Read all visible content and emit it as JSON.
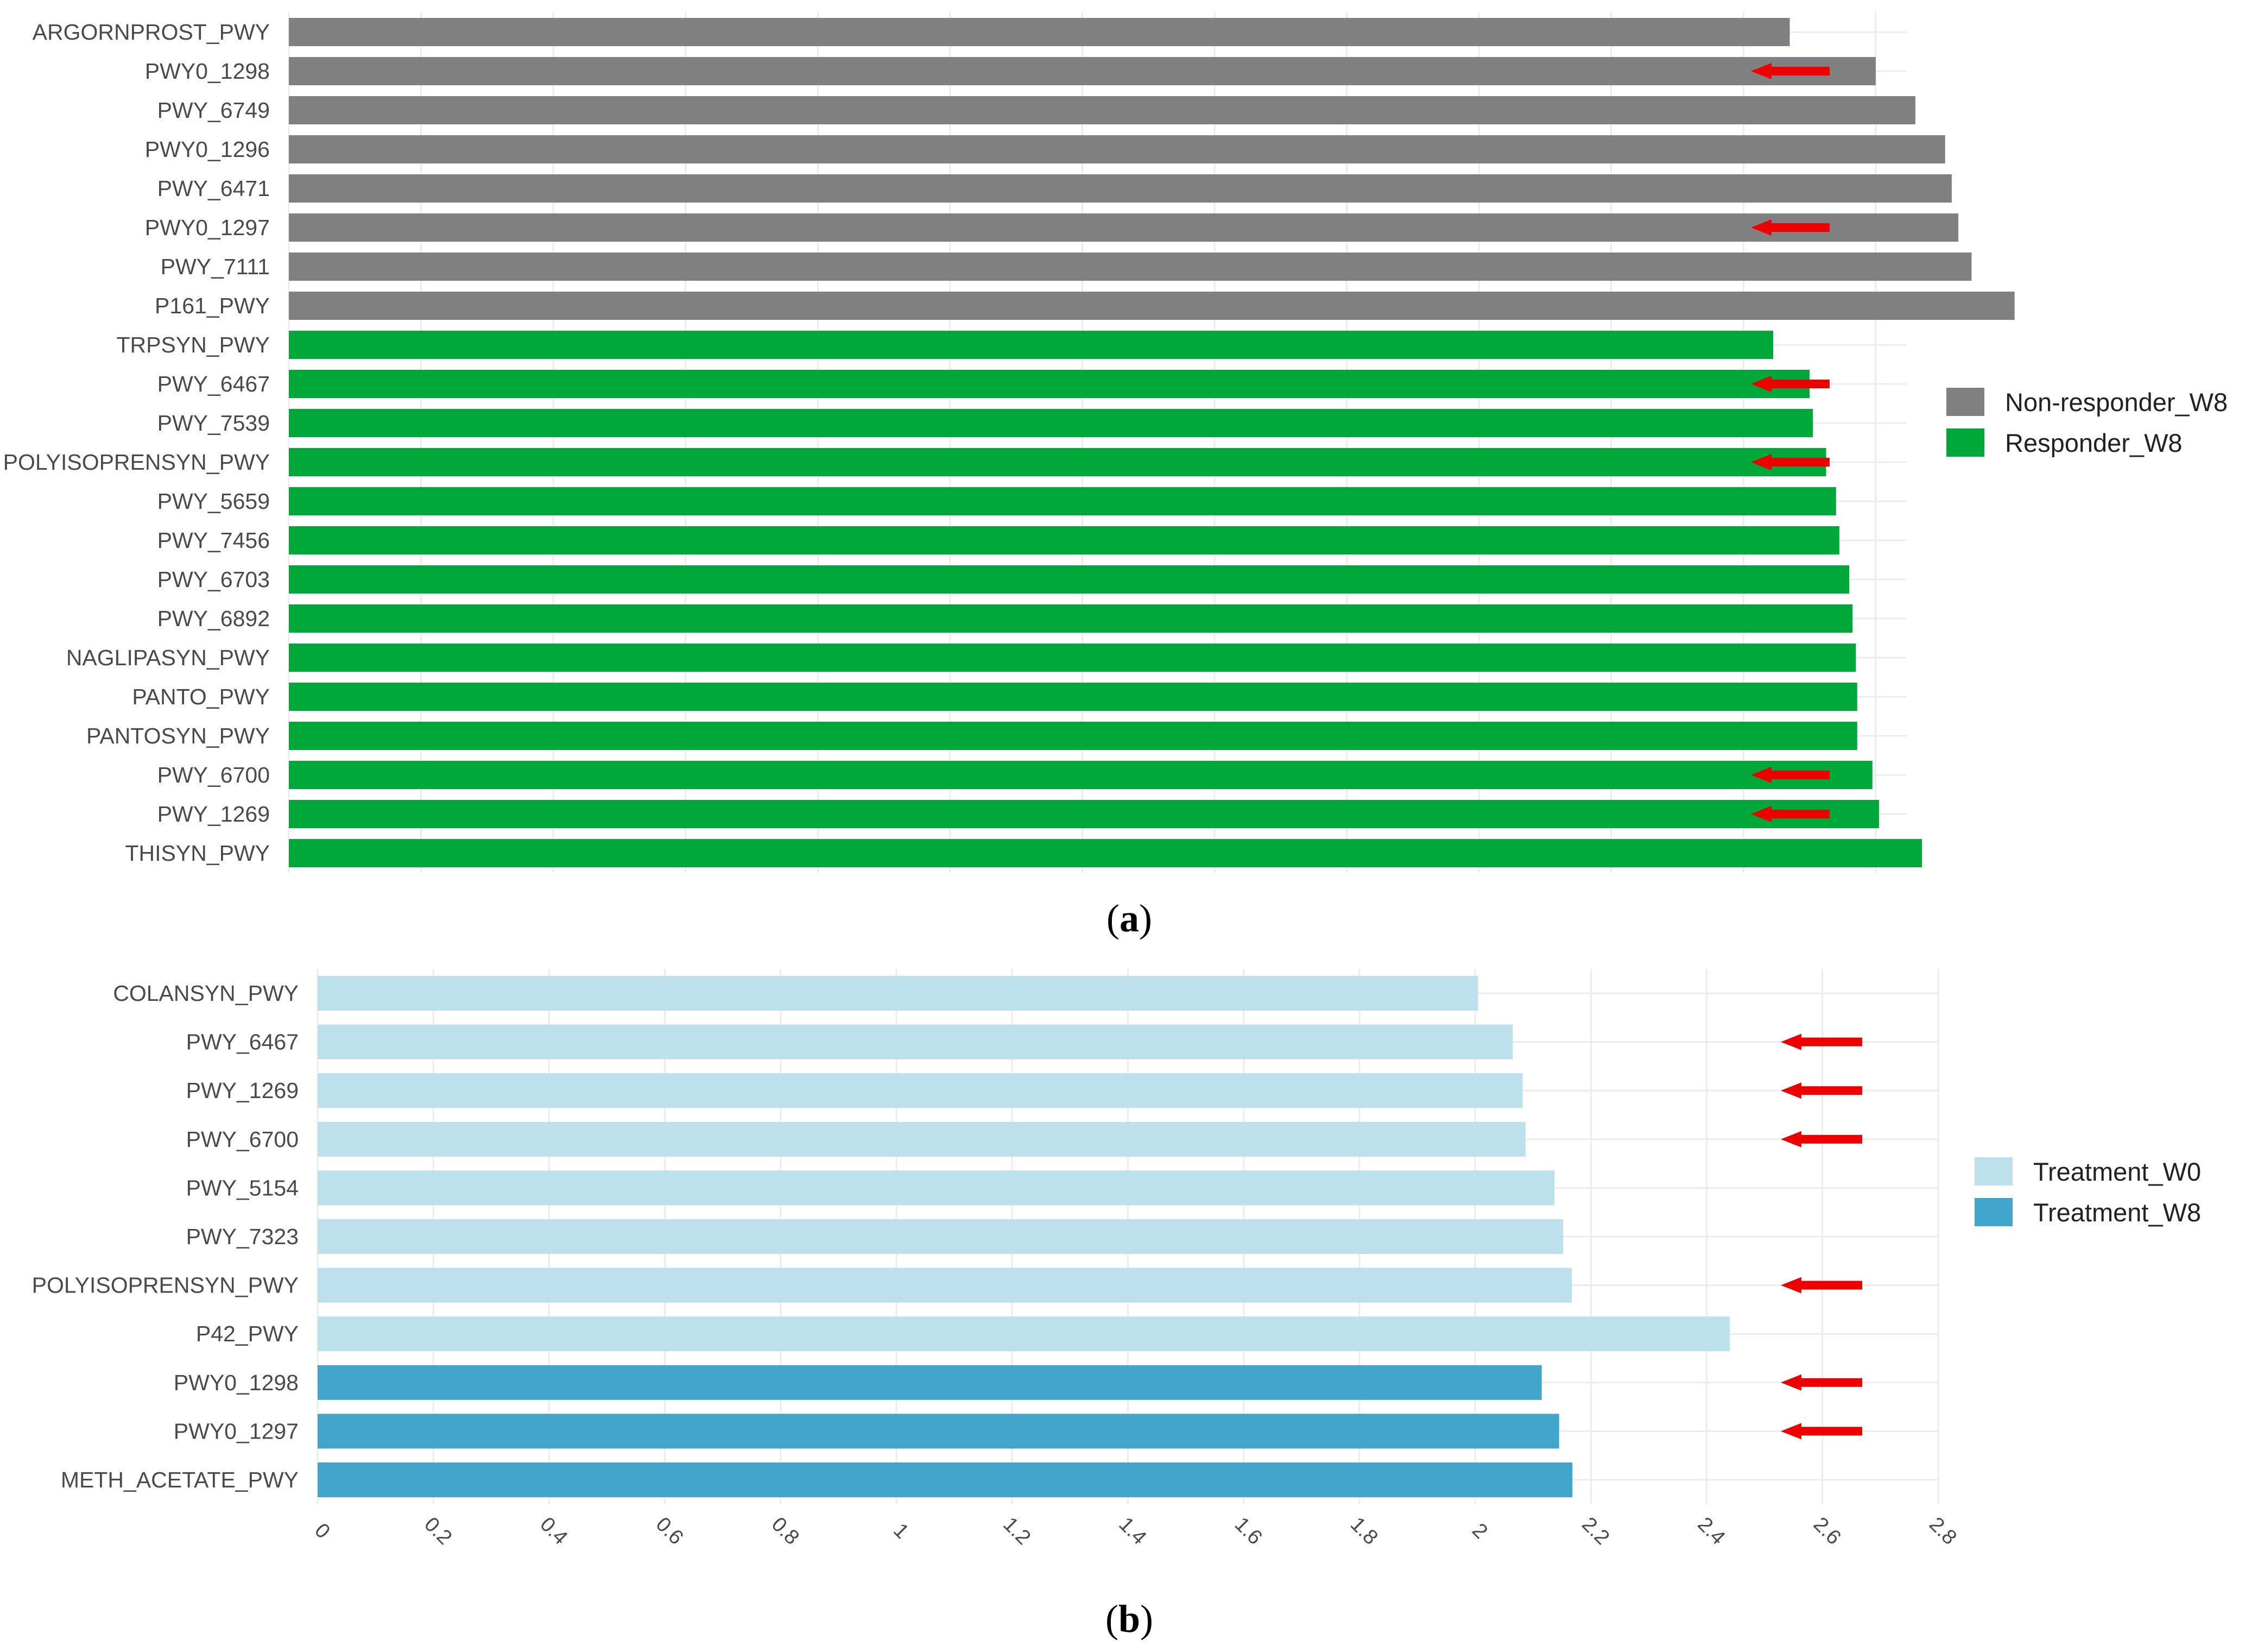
{
  "chart_data": [
    {
      "type": "bar",
      "orientation": "horizontal",
      "caption_letter": "a",
      "grid": true,
      "legend_position": "right",
      "xlim": [
        0,
        2.8
      ],
      "x_ticks_shown": false,
      "highlight_marker": "red-arrow",
      "series": [
        {
          "name": "Non-responder_W8",
          "color": "#808080"
        },
        {
          "name": "Responder_W8",
          "color": "#00a83a"
        }
      ],
      "bars": [
        {
          "label": "ARGORNPROST_PWY",
          "value": 2.27,
          "series": 0,
          "marked": false
        },
        {
          "label": "PWY0_1298",
          "value": 2.4,
          "series": 0,
          "marked": true
        },
        {
          "label": "PWY_6749",
          "value": 2.46,
          "series": 0,
          "marked": false
        },
        {
          "label": "PWY0_1296",
          "value": 2.505,
          "series": 0,
          "marked": false
        },
        {
          "label": "PWY_6471",
          "value": 2.515,
          "series": 0,
          "marked": false
        },
        {
          "label": "PWY0_1297",
          "value": 2.525,
          "series": 0,
          "marked": true
        },
        {
          "label": "PWY_7111",
          "value": 2.545,
          "series": 0,
          "marked": false
        },
        {
          "label": "P161_PWY",
          "value": 2.61,
          "series": 0,
          "marked": false
        },
        {
          "label": "TRPSYN_PWY",
          "value": 2.245,
          "series": 1,
          "marked": false
        },
        {
          "label": "PWY_6467",
          "value": 2.3,
          "series": 1,
          "marked": true
        },
        {
          "label": "PWY_7539",
          "value": 2.305,
          "series": 1,
          "marked": false
        },
        {
          "label": "POLYISOPRENSYN_PWY",
          "value": 2.325,
          "series": 1,
          "marked": true
        },
        {
          "label": "PWY_5659",
          "value": 2.34,
          "series": 1,
          "marked": false
        },
        {
          "label": "PWY_7456",
          "value": 2.345,
          "series": 1,
          "marked": false
        },
        {
          "label": "PWY_6703",
          "value": 2.36,
          "series": 1,
          "marked": false
        },
        {
          "label": "PWY_6892",
          "value": 2.365,
          "series": 1,
          "marked": false
        },
        {
          "label": "NAGLIPASYN_PWY",
          "value": 2.37,
          "series": 1,
          "marked": false
        },
        {
          "label": "PANTO_PWY",
          "value": 2.372,
          "series": 1,
          "marked": false
        },
        {
          "label": "PANTOSYN_PWY",
          "value": 2.372,
          "series": 1,
          "marked": false
        },
        {
          "label": "PWY_6700",
          "value": 2.395,
          "series": 1,
          "marked": true
        },
        {
          "label": "PWY_1269",
          "value": 2.405,
          "series": 1,
          "marked": true
        },
        {
          "label": "THISYN_PWY",
          "value": 2.47,
          "series": 1,
          "marked": false
        }
      ]
    },
    {
      "type": "bar",
      "orientation": "horizontal",
      "caption_letter": "b",
      "grid": true,
      "legend_position": "right",
      "xlim": [
        0,
        2.8
      ],
      "x_ticks": [
        "0",
        "0.2",
        "0.4",
        "0.6",
        "0.8",
        "1",
        "1.2",
        "1.4",
        "1.6",
        "1.8",
        "2",
        "2.2",
        "2.4",
        "2.6",
        "2.8"
      ],
      "highlight_marker": "red-arrow",
      "series": [
        {
          "name": "Treatment_W0",
          "color": "#bde0ed"
        },
        {
          "name": "Treatment_W8",
          "color": "#42a5cc"
        }
      ],
      "bars": [
        {
          "label": "COLANSYN_PWY",
          "value": 2.005,
          "series": 0,
          "marked": false
        },
        {
          "label": "PWY_6467",
          "value": 2.065,
          "series": 0,
          "marked": true
        },
        {
          "label": "PWY_1269",
          "value": 2.082,
          "series": 0,
          "marked": true
        },
        {
          "label": "PWY_6700",
          "value": 2.087,
          "series": 0,
          "marked": true
        },
        {
          "label": "PWY_5154",
          "value": 2.137,
          "series": 0,
          "marked": false
        },
        {
          "label": "PWY_7323",
          "value": 2.152,
          "series": 0,
          "marked": false
        },
        {
          "label": "POLYISOPRENSYN_PWY",
          "value": 2.167,
          "series": 0,
          "marked": true
        },
        {
          "label": "P42_PWY",
          "value": 2.44,
          "series": 0,
          "marked": false
        },
        {
          "label": "PWY0_1298",
          "value": 2.115,
          "series": 1,
          "marked": true
        },
        {
          "label": "PWY0_1297",
          "value": 2.145,
          "series": 1,
          "marked": true
        },
        {
          "label": "METH_ACETATE_PWY",
          "value": 2.168,
          "series": 1,
          "marked": false
        }
      ]
    }
  ]
}
